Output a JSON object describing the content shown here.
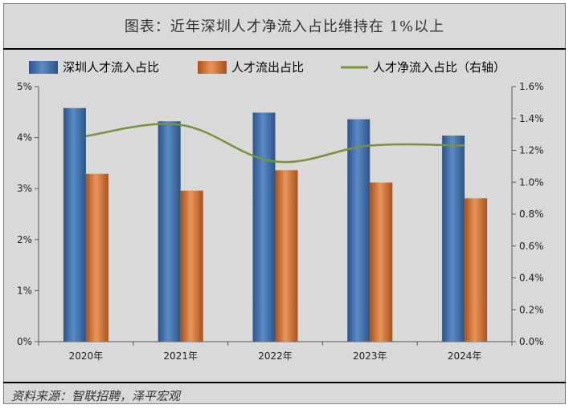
{
  "header": {
    "title": "图表：近年深圳人才净流入占比维持在 1%以上"
  },
  "footer": {
    "source": "资料来源：智联招聘，泽平宏观"
  },
  "colors": {
    "inflow": "#3f6da8",
    "outflow": "#c8682a",
    "net": "#77933c",
    "background": "#d9d9d9"
  },
  "chart_data": {
    "type": "bar",
    "categories": [
      "2020年",
      "2021年",
      "2022年",
      "2023年",
      "2024年"
    ],
    "series": [
      {
        "name": "深圳人才流入占比",
        "kind": "bar",
        "axis": "left",
        "values": [
          4.58,
          4.32,
          4.49,
          4.36,
          4.04
        ]
      },
      {
        "name": "人才流出占比",
        "kind": "bar",
        "axis": "left",
        "values": [
          3.29,
          2.96,
          3.36,
          3.12,
          2.81
        ]
      },
      {
        "name": "人才净流入占比（右轴）",
        "kind": "line",
        "axis": "right",
        "values": [
          1.29,
          1.36,
          1.13,
          1.23,
          1.23
        ]
      }
    ],
    "y_left": {
      "min": 0,
      "max": 5,
      "step": 1,
      "labels": [
        "0%",
        "1%",
        "2%",
        "3%",
        "4%",
        "5%"
      ]
    },
    "y_right": {
      "min": 0,
      "max": 1.6,
      "step": 0.2,
      "labels": [
        "0.0%",
        "0.2%",
        "0.4%",
        "0.6%",
        "0.8%",
        "1.0%",
        "1.2%",
        "1.4%",
        "1.6%"
      ]
    },
    "legend": "top",
    "grid": false
  }
}
